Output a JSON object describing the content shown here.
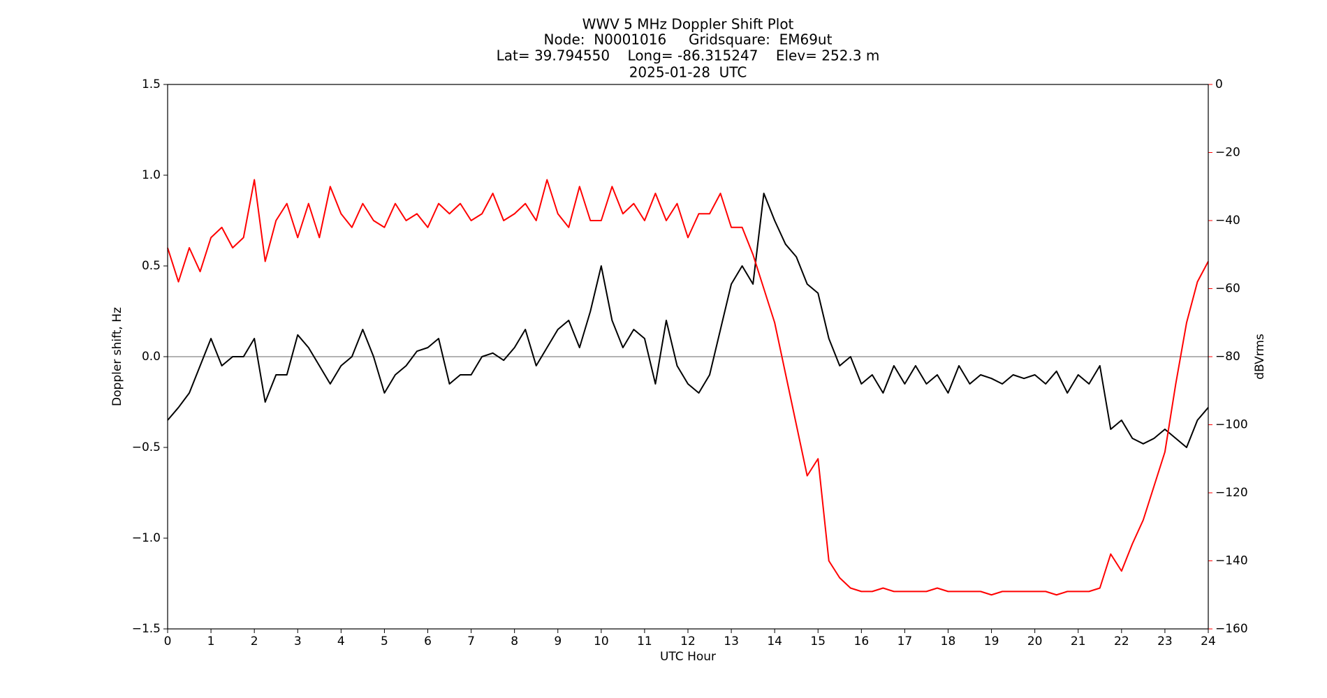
{
  "chart_data": {
    "type": "line",
    "title": [
      "WWV 5 MHz Doppler Shift Plot",
      "Node:  N0001016     Gridsquare:  EM69ut",
      "Lat= 39.794550    Long= -86.315247    Elev= 252.3 m",
      "2025-01-28  UTC"
    ],
    "xlabel": "UTC Hour",
    "ylabel": "Doppler shift, Hz",
    "y2label": "dBVrms",
    "y2label_color": "#ff0000",
    "x": [
      0,
      0.25,
      0.5,
      0.75,
      1,
      1.25,
      1.5,
      1.75,
      2,
      2.25,
      2.5,
      2.75,
      3,
      3.25,
      3.5,
      3.75,
      4,
      4.25,
      4.5,
      4.75,
      5,
      5.25,
      5.5,
      5.75,
      6,
      6.25,
      6.5,
      6.75,
      7,
      7.25,
      7.5,
      7.75,
      8,
      8.25,
      8.5,
      8.75,
      9,
      9.25,
      9.5,
      9.75,
      10,
      10.25,
      10.5,
      10.75,
      11,
      11.25,
      11.5,
      11.75,
      12,
      12.25,
      12.5,
      12.75,
      13,
      13.25,
      13.5,
      13.75,
      14,
      14.25,
      14.5,
      14.75,
      15,
      15.25,
      15.5,
      15.75,
      16,
      16.25,
      16.5,
      16.75,
      17,
      17.25,
      17.5,
      17.75,
      18,
      18.25,
      18.5,
      18.75,
      19,
      19.25,
      19.5,
      19.75,
      20,
      20.25,
      20.5,
      20.75,
      21,
      21.25,
      21.5,
      21.75,
      22,
      22.25,
      22.5,
      22.75,
      23,
      23.25,
      23.5,
      23.75,
      24
    ],
    "series": [
      {
        "color": "#000000",
        "axis": "y",
        "values": [
          -0.35,
          -0.28,
          -0.2,
          -0.05,
          0.1,
          -0.05,
          0.0,
          0.0,
          0.1,
          -0.25,
          -0.1,
          -0.1,
          0.12,
          0.05,
          -0.05,
          -0.15,
          -0.05,
          0.0,
          0.15,
          0.0,
          -0.2,
          -0.1,
          -0.05,
          0.03,
          0.05,
          0.1,
          -0.15,
          -0.1,
          -0.1,
          0.0,
          0.02,
          -0.02,
          0.05,
          0.15,
          -0.05,
          0.05,
          0.15,
          0.2,
          0.05,
          0.25,
          0.5,
          0.2,
          0.05,
          0.15,
          0.1,
          -0.15,
          0.2,
          -0.05,
          -0.15,
          -0.2,
          -0.1,
          0.15,
          0.4,
          0.5,
          0.4,
          0.9,
          0.75,
          0.62,
          0.55,
          0.4,
          0.35,
          0.1,
          -0.05,
          0.0,
          -0.15,
          -0.1,
          -0.2,
          -0.05,
          -0.15,
          -0.05,
          -0.15,
          -0.1,
          -0.2,
          -0.05,
          -0.15,
          -0.1,
          -0.12,
          -0.15,
          -0.1,
          -0.12,
          -0.1,
          -0.15,
          -0.08,
          -0.2,
          -0.1,
          -0.15,
          -0.05,
          -0.4,
          -0.35,
          -0.45,
          -0.48,
          -0.45,
          -0.4,
          -0.45,
          -0.5,
          -0.35,
          -0.28
        ]
      },
      {
        "color": "#ff0000",
        "axis": "y2",
        "values": [
          -48,
          -58,
          -48,
          -55,
          -45,
          -42,
          -48,
          -45,
          -28,
          -52,
          -40,
          -35,
          -45,
          -35,
          -45,
          -30,
          -38,
          -42,
          -35,
          -40,
          -42,
          -35,
          -40,
          -38,
          -42,
          -35,
          -38,
          -35,
          -40,
          -38,
          -32,
          -40,
          -38,
          -35,
          -40,
          -28,
          -38,
          -42,
          -30,
          -40,
          -40,
          -30,
          -38,
          -35,
          -40,
          -32,
          -40,
          -35,
          -45,
          -38,
          -38,
          -32,
          -42,
          -42,
          -50,
          -60,
          -70,
          -85,
          -100,
          -115,
          -110,
          -140,
          -145,
          -148,
          -149,
          -149,
          -148,
          -149,
          -149,
          -149,
          -149,
          -148,
          -149,
          -149,
          -149,
          -149,
          -150,
          -149,
          -149,
          -149,
          -149,
          -149,
          -150,
          -149,
          -149,
          -149,
          -148,
          -138,
          -143,
          -135,
          -128,
          -118,
          -108,
          -88,
          -70,
          -58,
          -52
        ]
      }
    ],
    "xlim": [
      0,
      24
    ],
    "xticks": [
      0,
      1,
      2,
      3,
      4,
      5,
      6,
      7,
      8,
      9,
      10,
      11,
      12,
      13,
      14,
      15,
      16,
      17,
      18,
      19,
      20,
      21,
      22,
      23,
      24
    ],
    "ylim": [
      -1.5,
      1.5
    ],
    "yticks": [
      {
        "value": -1.5,
        "label": "−1.5"
      },
      {
        "value": -1.0,
        "label": "−1.0"
      },
      {
        "value": -0.5,
        "label": "−0.5"
      },
      {
        "value": 0,
        "label": "0.0"
      },
      0.5,
      {
        "value": 1.0,
        "label": "1.0"
      },
      1.5
    ],
    "y2lim": [
      -160,
      0
    ],
    "y2ticks": [
      {
        "value": -160,
        "label": "−160"
      },
      {
        "value": -140,
        "label": "−140"
      },
      {
        "value": -120,
        "label": "−120"
      },
      {
        "value": -100,
        "label": "−100"
      },
      {
        "value": -80,
        "label": "−80"
      },
      {
        "value": -60,
        "label": "−60"
      },
      {
        "value": -40,
        "label": "−40"
      },
      {
        "value": -20,
        "label": "−20"
      },
      0
    ],
    "y2tick_color": "#ff0000",
    "reference_line": 0,
    "reference_line_color": "#999999",
    "grid": false
  }
}
